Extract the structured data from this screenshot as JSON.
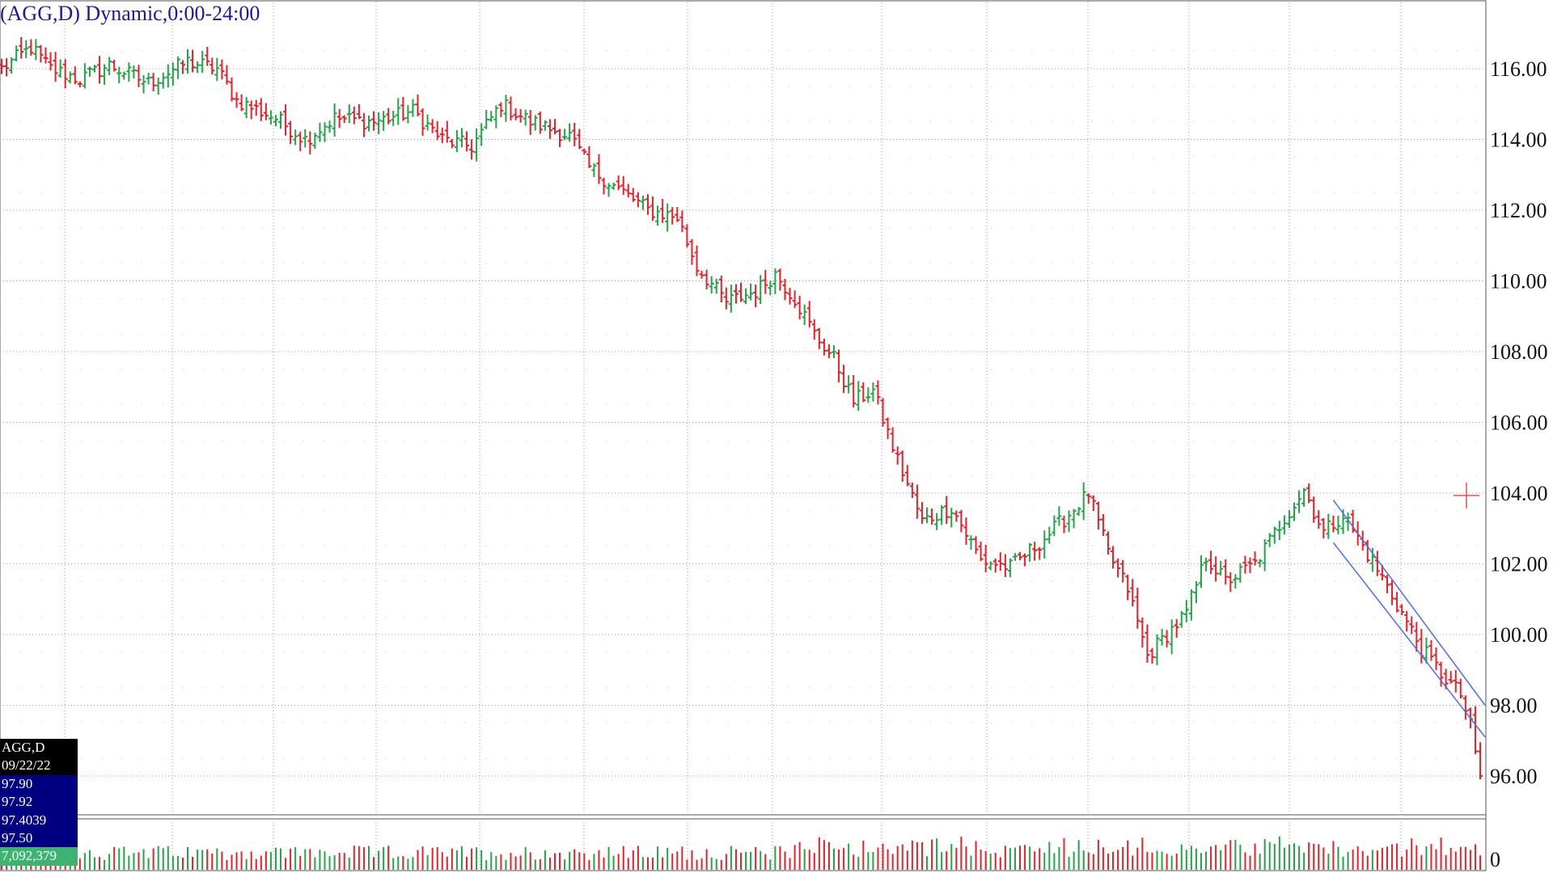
{
  "title": "(AGG,D) Dynamic,0:00-24:00",
  "info_box": {
    "symbol": "AGG,D",
    "date": "09/22/22",
    "open": "97.90",
    "high": "97.92",
    "low": "97.4039",
    "close": "97.50",
    "volume": "7,092,379"
  },
  "colors": {
    "up": "#22a447",
    "down": "#e8202a",
    "channel": "#4a6cf0",
    "grid": "#9a9a9a",
    "title": "#1a1a9c",
    "cursor": "#e85050"
  },
  "chart_data": {
    "type": "bar",
    "subtype": "ohlc",
    "symbol": "AGG",
    "interval": "daily",
    "y_axis": {
      "ticks": [
        "116.00",
        "114.00",
        "112.00",
        "110.00",
        "108.00",
        "106.00",
        "104.00",
        "102.00",
        "100.00",
        "98.00",
        "96.00"
      ],
      "ylim": [
        95.0,
        117.9
      ]
    },
    "volume_axis": {
      "ticks": [
        "0"
      ]
    },
    "grid": true,
    "close_anchors": [
      [
        0,
        116.0
      ],
      [
        6,
        116.6
      ],
      [
        10,
        116.0
      ],
      [
        16,
        115.7
      ],
      [
        22,
        116.1
      ],
      [
        30,
        115.6
      ],
      [
        38,
        116.2
      ],
      [
        44,
        116.0
      ],
      [
        48,
        115.1
      ],
      [
        56,
        114.6
      ],
      [
        62,
        114.0
      ],
      [
        68,
        114.6
      ],
      [
        76,
        114.5
      ],
      [
        84,
        114.8
      ],
      [
        90,
        114.0
      ],
      [
        96,
        113.8
      ],
      [
        102,
        115.0
      ],
      [
        108,
        114.5
      ],
      [
        116,
        114.1
      ],
      [
        120,
        113.2
      ],
      [
        126,
        112.6
      ],
      [
        132,
        112.0
      ],
      [
        138,
        111.8
      ],
      [
        142,
        110.4
      ],
      [
        148,
        109.4
      ],
      [
        154,
        109.7
      ],
      [
        158,
        110.2
      ],
      [
        162,
        109.5
      ],
      [
        166,
        108.5
      ],
      [
        170,
        107.8
      ],
      [
        174,
        106.6
      ],
      [
        178,
        106.9
      ],
      [
        182,
        105.3
      ],
      [
        188,
        103.2
      ],
      [
        194,
        103.6
      ],
      [
        200,
        102.1
      ],
      [
        206,
        101.9
      ],
      [
        212,
        102.6
      ],
      [
        218,
        103.4
      ],
      [
        222,
        104.0
      ],
      [
        226,
        102.3
      ],
      [
        230,
        101.3
      ],
      [
        234,
        99.4
      ],
      [
        238,
        100.0
      ],
      [
        242,
        100.6
      ],
      [
        246,
        102.2
      ],
      [
        250,
        101.5
      ],
      [
        256,
        102.0
      ],
      [
        262,
        103.3
      ],
      [
        266,
        104.1
      ],
      [
        270,
        102.9
      ],
      [
        274,
        103.4
      ],
      [
        278,
        102.5
      ],
      [
        282,
        101.6
      ],
      [
        286,
        100.6
      ],
      [
        290,
        99.6
      ],
      [
        294,
        98.9
      ],
      [
        298,
        98.3
      ],
      [
        300,
        97.4
      ],
      [
        302,
        96.0
      ]
    ],
    "channel": {
      "upper": {
        "from": [
          272,
          103.8
        ],
        "to": [
          303,
          98.0
        ]
      },
      "lower": {
        "from": [
          272,
          102.6
        ],
        "to": [
          303,
          97.1
        ]
      }
    }
  }
}
